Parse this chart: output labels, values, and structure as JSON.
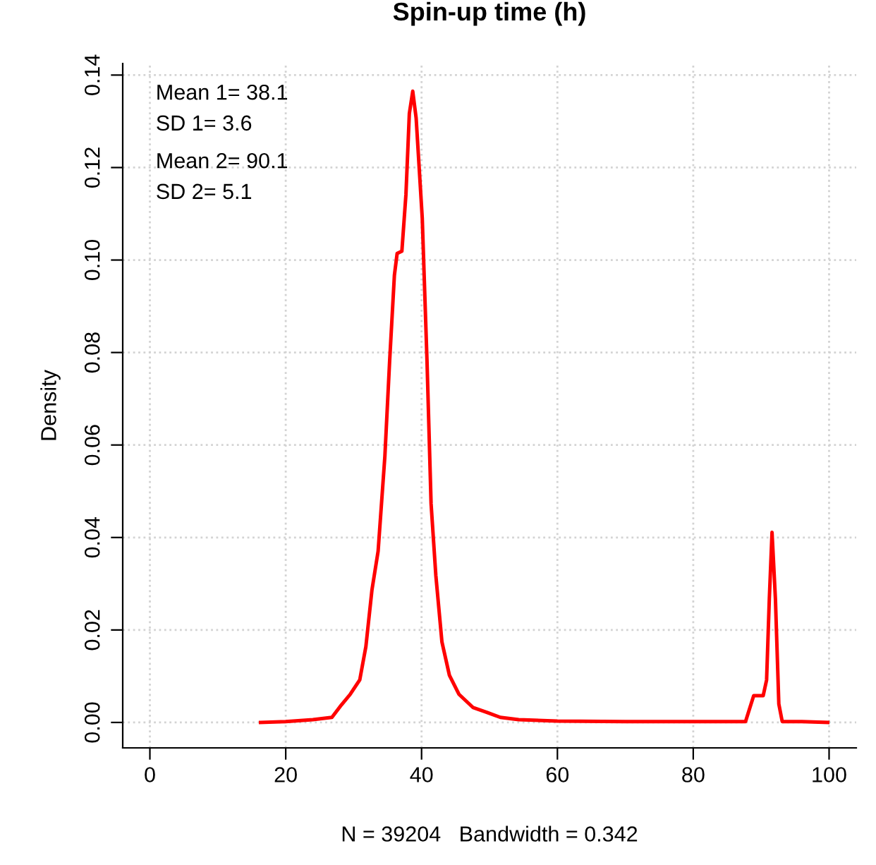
{
  "chart_data": {
    "type": "line",
    "title": "Spin-up time (h)",
    "xlabel": "N = 39204   Bandwidth = 0.342",
    "ylabel": "Density",
    "annotations": [
      "Mean 1= 38.1",
      "SD 1= 3.6",
      "Mean 2= 90.1",
      "SD 2= 5.1"
    ],
    "series": [
      {
        "color": "#ff0000",
        "x": [
          16.3,
          20,
          24,
          26.8,
          28.2,
          29.5,
          30.9,
          31.8,
          32.7,
          33.6,
          34.6,
          35.3,
          36.0,
          36.4,
          37.1,
          37.7,
          38.2,
          38.7,
          39.2,
          40.1,
          40.8,
          41.4,
          42.1,
          43.0,
          44.1,
          45.5,
          47.6,
          49.6,
          51.6,
          54.3,
          60,
          70,
          80,
          87.7,
          88.9,
          90.3,
          90.8,
          91.2,
          91.6,
          92.1,
          92.6,
          93.1,
          96,
          99.8
        ],
        "values": [
          0.0,
          0.0002,
          0.0006,
          0.0011,
          0.0038,
          0.0061,
          0.0092,
          0.0164,
          0.0287,
          0.037,
          0.0576,
          0.0782,
          0.0967,
          0.1014,
          0.1019,
          0.1142,
          0.1317,
          0.1365,
          0.1307,
          0.1091,
          0.0782,
          0.0473,
          0.0318,
          0.0174,
          0.0102,
          0.0061,
          0.0032,
          0.0022,
          0.0011,
          0.0006,
          0.0003,
          0.0002,
          0.0002,
          0.0002,
          0.0058,
          0.0058,
          0.0092,
          0.0267,
          0.0411,
          0.0267,
          0.004,
          0.0002,
          0.0002,
          0.0
        ]
      }
    ],
    "xlim": [
      -4,
      104
    ],
    "ylim": [
      -0.0055,
      0.1425
    ],
    "xticks": [
      0,
      20,
      40,
      60,
      80,
      100
    ],
    "yticks": [
      {
        "value": 0,
        "label": "0.00"
      },
      {
        "value": 0.02,
        "label": "0.02"
      },
      {
        "value": 0.04,
        "label": "0.04"
      },
      {
        "value": 0.06,
        "label": "0.06"
      },
      {
        "value": 0.08,
        "label": "0.08"
      },
      {
        "value": 0.1,
        "label": "0.10"
      },
      {
        "value": 0.12,
        "label": "0.12"
      },
      {
        "value": 0.14,
        "label": "0.14"
      }
    ],
    "grid": true,
    "marker": "none",
    "line_style": "solid",
    "legend": false
  }
}
